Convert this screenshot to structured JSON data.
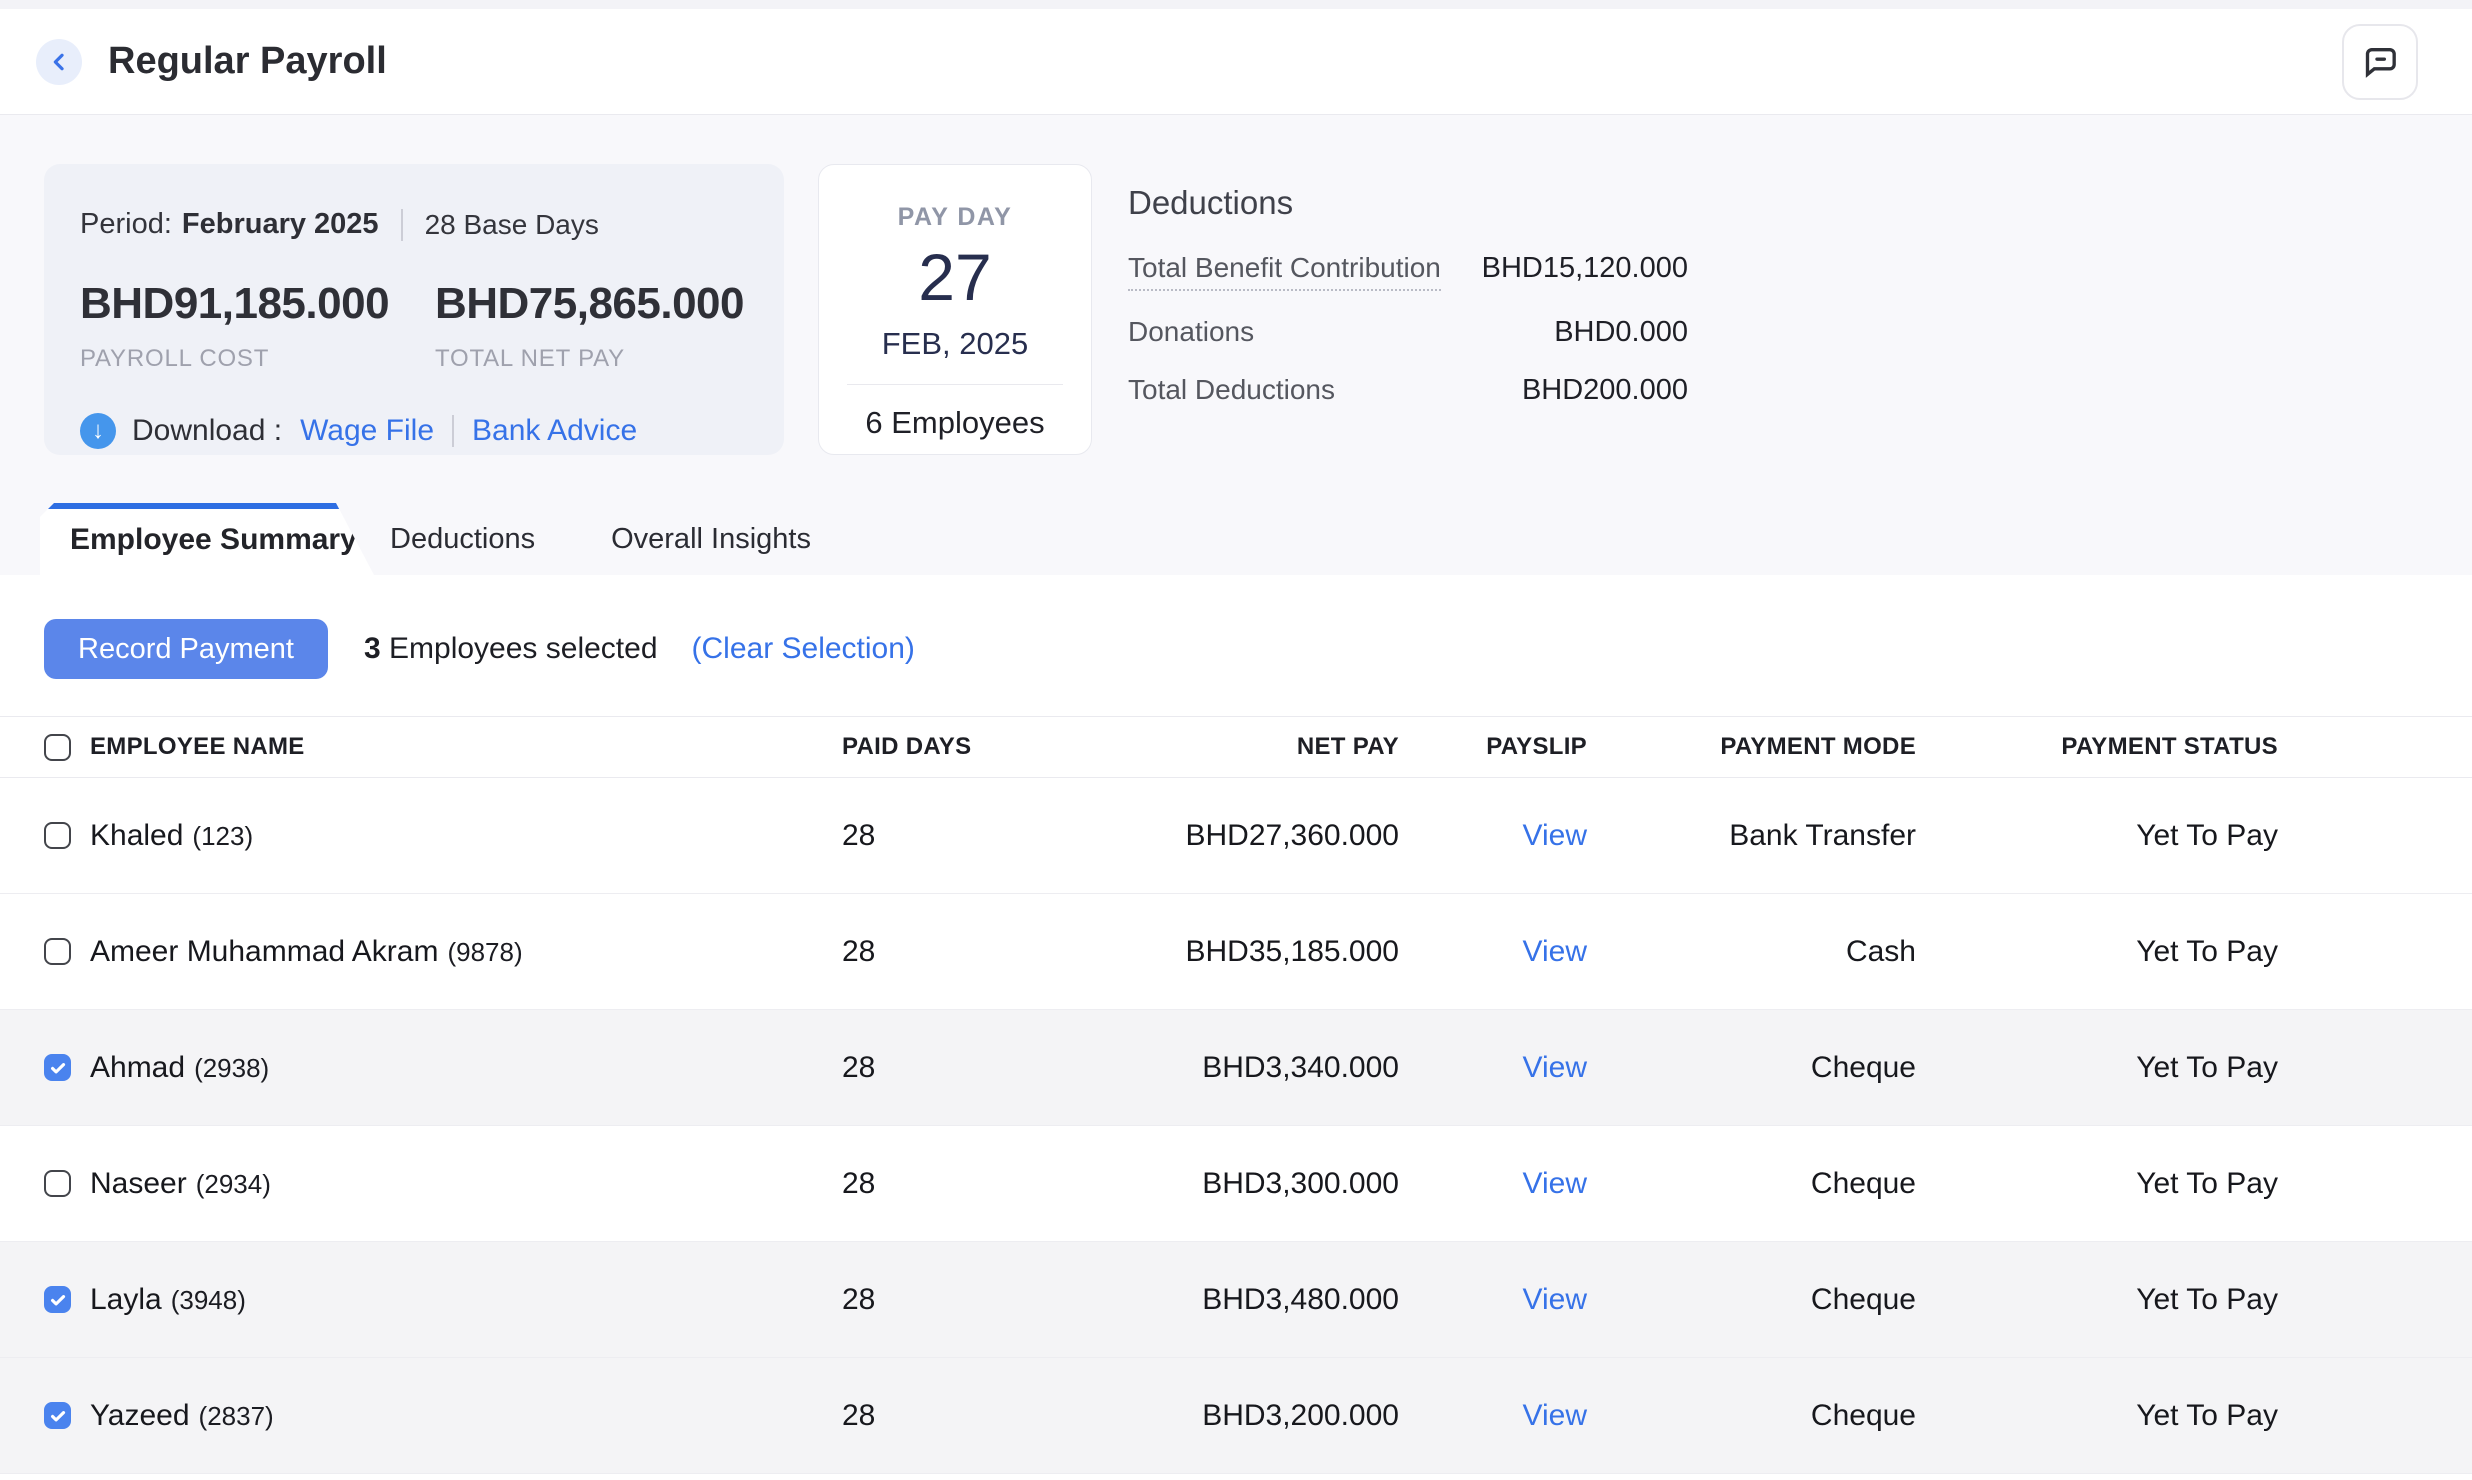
{
  "header": {
    "title": "Regular Payroll"
  },
  "icons": {
    "back": "chevron-left",
    "comment": "chat-bubble",
    "download": "arrow-down-circle",
    "checkbox_checked": "checkmark"
  },
  "colors": {
    "accent_blue": "#2e6ee2",
    "link_blue": "#3672e8",
    "button_blue": "#5b86ea",
    "checkbox_blue": "#4a83ee",
    "download_icon_blue": "#4596ec",
    "selected_row_bg": "#f4f4f6",
    "period_card_bg": "#eff1f7",
    "payday_navy": "#272e4e"
  },
  "summary": {
    "period_label": "Period:",
    "period_value": "February 2025",
    "base_days": "28 Base Days",
    "payroll_cost": "BHD91,185.000",
    "payroll_cost_label": "PAYROLL COST",
    "total_net_pay": "BHD75,865.000",
    "total_net_pay_label": "TOTAL NET PAY",
    "download_label": "Download :",
    "download_glyph": "↓",
    "wage_file_link": "Wage File",
    "bank_advice_link": "Bank Advice"
  },
  "payday": {
    "label": "PAY DAY",
    "day": "27",
    "month_year": "FEB, 2025",
    "employees": "6 Employees"
  },
  "deductions": {
    "title": "Deductions",
    "rows": [
      {
        "label": "Total Benefit Contribution",
        "value": "BHD15,120.000"
      },
      {
        "label": "Donations",
        "value": "BHD0.000"
      },
      {
        "label": "Total Deductions",
        "value": "BHD200.000"
      }
    ]
  },
  "tabs": [
    {
      "label": "Employee Summary",
      "active": true
    },
    {
      "label": "Deductions",
      "active": false
    },
    {
      "label": "Overall Insights",
      "active": false
    }
  ],
  "actions": {
    "record_payment": "Record Payment",
    "selected_count": "3",
    "selected_suffix": " Employees selected",
    "clear_selection": "(Clear Selection)"
  },
  "table": {
    "columns": [
      "EMPLOYEE NAME",
      "PAID DAYS",
      "NET PAY",
      "PAYSLIP",
      "PAYMENT MODE",
      "PAYMENT STATUS"
    ],
    "payslip_link": "View",
    "rows": [
      {
        "name": "Khaled",
        "id": "(123)",
        "paid_days": "28",
        "net_pay": "BHD27,360.000",
        "mode": "Bank Transfer",
        "status": "Yet To Pay",
        "checked": false
      },
      {
        "name": "Ameer Muhammad Akram",
        "id": "(9878)",
        "paid_days": "28",
        "net_pay": "BHD35,185.000",
        "mode": "Cash",
        "status": "Yet To Pay",
        "checked": false
      },
      {
        "name": "Ahmad",
        "id": "(2938)",
        "paid_days": "28",
        "net_pay": "BHD3,340.000",
        "mode": "Cheque",
        "status": "Yet To Pay",
        "checked": true
      },
      {
        "name": "Naseer",
        "id": "(2934)",
        "paid_days": "28",
        "net_pay": "BHD3,300.000",
        "mode": "Cheque",
        "status": "Yet To Pay",
        "checked": false
      },
      {
        "name": "Layla",
        "id": "(3948)",
        "paid_days": "28",
        "net_pay": "BHD3,480.000",
        "mode": "Cheque",
        "status": "Yet To Pay",
        "checked": true
      },
      {
        "name": "Yazeed",
        "id": "(2837)",
        "paid_days": "28",
        "net_pay": "BHD3,200.000",
        "mode": "Cheque",
        "status": "Yet To Pay",
        "checked": true
      }
    ]
  }
}
